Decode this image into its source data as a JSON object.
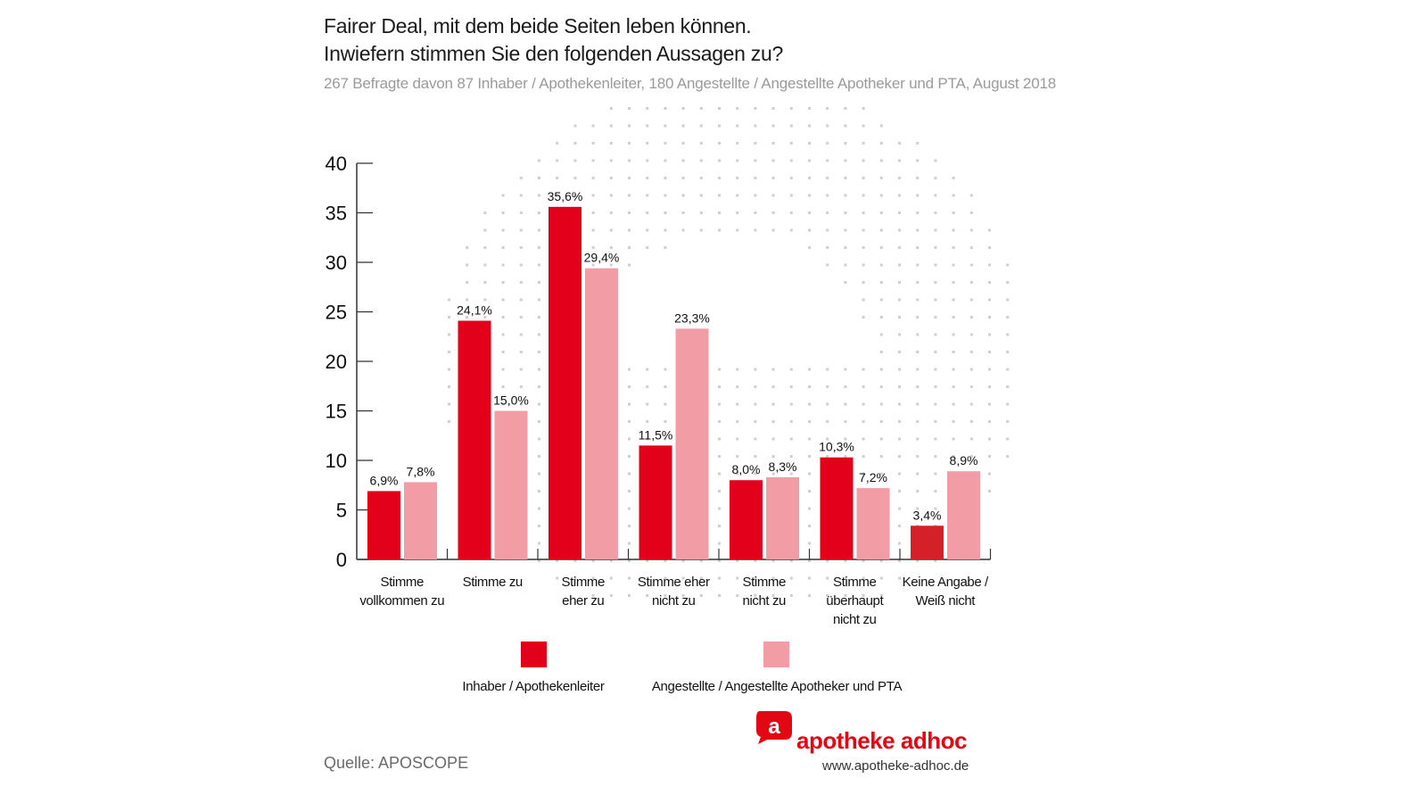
{
  "header": {
    "title_line1": "Fairer Deal, mit dem beide Seiten leben können.",
    "title_line2": "Inwiefern stimmen Sie den folgenden Aussagen zu?",
    "subtitle": "267 Befragte davon 87 Inhaber / Apothekenleiter, 180 Angestellte / Angestellte Apotheker und PTA, August 2018"
  },
  "footer": {
    "source": "Quelle: APOSCOPE",
    "logo_letter": "a",
    "logo_text": "apotheke adhoc",
    "logo_url": "www.apotheke-adhoc.de"
  },
  "colors": {
    "series1": "#e2001a",
    "series2": "#f29ca6",
    "highlight": "#d42129",
    "brand": "#e30613"
  },
  "chart_data": {
    "type": "bar",
    "title": "Fairer Deal, mit dem beide Seiten leben können. Inwiefern stimmen Sie den folgenden Aussagen zu?",
    "subtitle": "267 Befragte davon 87 Inhaber / Apothekenleiter, 180 Angestellte / Angestellte Apotheker und PTA, August 2018",
    "xlabel": "",
    "ylabel": "",
    "ylim": [
      0,
      40
    ],
    "yticks": [
      0,
      5,
      10,
      15,
      20,
      25,
      30,
      35,
      40
    ],
    "grid": false,
    "legend_position": "bottom",
    "categories": [
      [
        "Stimme",
        "vollkommen zu"
      ],
      [
        "Stimme zu"
      ],
      [
        "Stimme",
        "eher zu"
      ],
      [
        "Stimme eher",
        "nicht zu"
      ],
      [
        "Stimme",
        "nicht zu"
      ],
      [
        "Stimme",
        "überhaupt",
        "nicht zu"
      ],
      [
        "Keine Angabe /",
        "Weiß nicht"
      ]
    ],
    "series": [
      {
        "name": "Inhaber / Apothekenleiter",
        "values": [
          6.9,
          24.1,
          35.6,
          11.5,
          8.0,
          10.3,
          3.4
        ],
        "labels": [
          "6,9%",
          "24,1%",
          "35,6%",
          "11,5%",
          "8,0%",
          "10,3%",
          "3,4%"
        ]
      },
      {
        "name": "Angestellte / Angestellte Apotheker und PTA",
        "values": [
          7.8,
          15.0,
          29.4,
          23.3,
          8.3,
          7.2,
          8.9
        ],
        "labels": [
          "7,8%",
          "15,0%",
          "29,4%",
          "23,3%",
          "8,3%",
          "7,2%",
          "8,9%"
        ]
      }
    ]
  }
}
